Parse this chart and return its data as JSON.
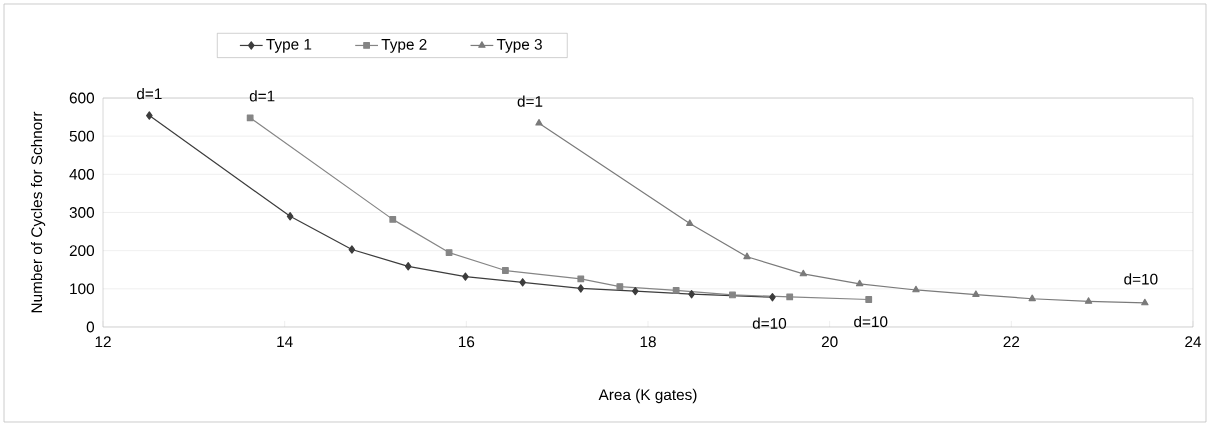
{
  "chart_data": {
    "type": "line",
    "xlabel": "Area (K gates)",
    "ylabel": "Number of Cycles for Schnorr",
    "xlim": [
      12,
      24
    ],
    "xticks": [
      12,
      14,
      16,
      18,
      20,
      22,
      24
    ],
    "ylim": [
      0,
      600
    ],
    "yticks": [
      0,
      100,
      200,
      300,
      400,
      500,
      600
    ],
    "grid": "y",
    "legend": "top",
    "line_style": "solid",
    "series": [
      {
        "name": "Type 1",
        "color": "#3c3c3c",
        "marker": "diamond",
        "x": [
          12.51,
          14.06,
          14.74,
          15.36,
          15.99,
          16.62,
          17.26,
          17.86,
          18.48,
          19.37
        ],
        "values": [
          554,
          290,
          203,
          159,
          132,
          117,
          101,
          94,
          86,
          78
        ]
      },
      {
        "name": "Type 2",
        "color": "#858585",
        "marker": "square",
        "x": [
          13.62,
          15.19,
          15.81,
          16.43,
          17.26,
          17.69,
          18.31,
          18.93,
          19.56,
          20.43
        ],
        "values": [
          548,
          282,
          195,
          148,
          126,
          106,
          96,
          84,
          79,
          72
        ]
      },
      {
        "name": "Type 3",
        "color": "#7a7a7a",
        "marker": "triangle",
        "x": [
          16.8,
          18.46,
          19.09,
          19.71,
          20.33,
          20.95,
          21.61,
          22.23,
          22.85,
          23.47
        ],
        "values": [
          534,
          271,
          184,
          139,
          113,
          97,
          85,
          74,
          67,
          63
        ]
      }
    ],
    "annotations": [
      {
        "text": "d=1",
        "x": 12.51,
        "y": 554
      },
      {
        "text": "d=1",
        "x": 13.62,
        "y": 548
      },
      {
        "text": "d=1",
        "x": 16.8,
        "y": 534
      },
      {
        "text": "d=10",
        "x": 19.37,
        "y": 78
      },
      {
        "text": "d=10",
        "x": 20.43,
        "y": 72
      },
      {
        "text": "d=10",
        "x": 23.47,
        "y": 63
      }
    ]
  }
}
